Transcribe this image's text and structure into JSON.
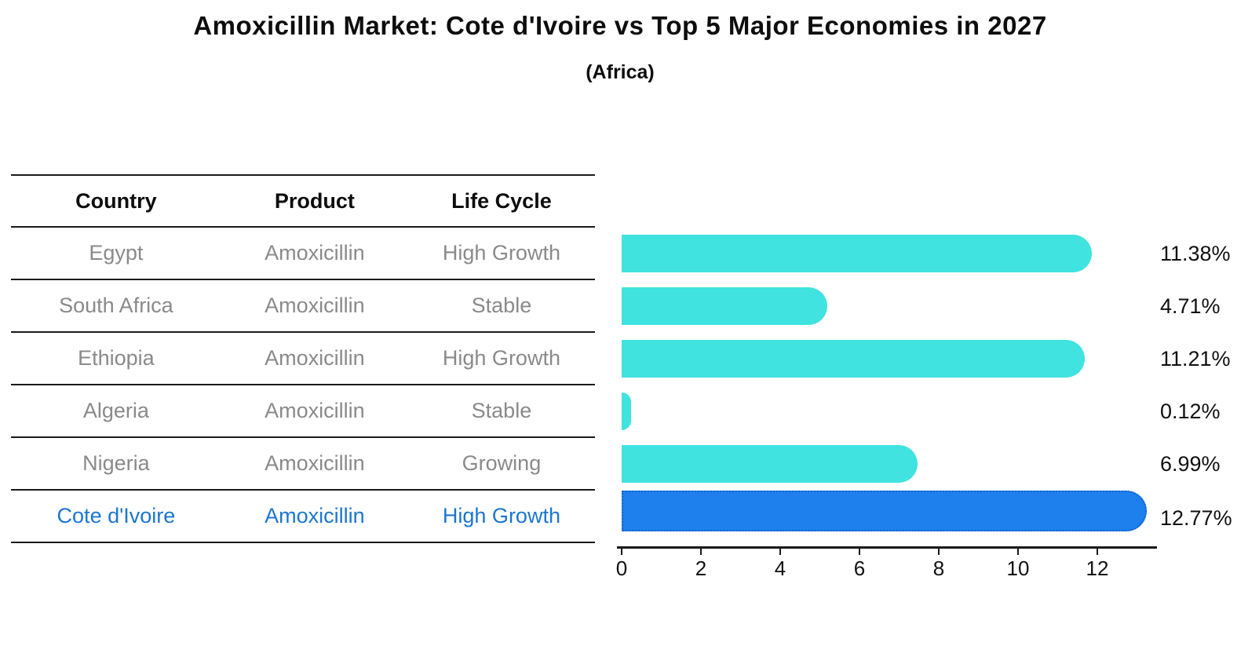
{
  "title": "Amoxicillin Market: Cote d'Ivoire vs Top 5 Major Economies in 2027",
  "subtitle": "(Africa)",
  "table": {
    "headers": [
      "Country",
      "Product",
      "Life Cycle"
    ],
    "rows": [
      {
        "country": "Egypt",
        "product": "Amoxicillin",
        "life_cycle": "High Growth",
        "highlight": false
      },
      {
        "country": "South Africa",
        "product": "Amoxicillin",
        "life_cycle": "Stable",
        "highlight": false
      },
      {
        "country": "Ethiopia",
        "product": "Amoxicillin",
        "life_cycle": "High Growth",
        "highlight": false
      },
      {
        "country": "Algeria",
        "product": "Amoxicillin",
        "life_cycle": "Stable",
        "highlight": false
      },
      {
        "country": "Nigeria",
        "product": "Amoxicillin",
        "life_cycle": "Growing",
        "highlight": false
      },
      {
        "country": "Cote d'Ivoire",
        "product": "Amoxicillin",
        "life_cycle": "High Growth",
        "highlight": true
      }
    ]
  },
  "chart_data": {
    "type": "bar",
    "orientation": "horizontal",
    "title": "Amoxicillin Market: Cote d'Ivoire vs Top 5 Major Economies in 2027 (Africa)",
    "categories": [
      "Egypt",
      "South Africa",
      "Ethiopia",
      "Algeria",
      "Nigeria",
      "Cote d'Ivoire"
    ],
    "values": [
      11.38,
      4.71,
      11.21,
      0.12,
      6.99,
      12.77
    ],
    "value_labels": [
      "11.38%",
      "4.71%",
      "11.21%",
      "0.12%",
      "6.99%",
      "12.77%"
    ],
    "x_ticks": [
      "0",
      "2",
      "4",
      "6",
      "8",
      "10",
      "12"
    ],
    "xlim": [
      0,
      13.4
    ],
    "grid": false,
    "legend": "none",
    "bar_color": "#40E3E0",
    "highlight_bar_color": "#1E80EC",
    "highlight_border_color": "#1463CC",
    "highlight_index": 5
  },
  "colors": {
    "background": "#FFFFFF",
    "text_primary": "#0D0D0D",
    "text_muted": "#8A8A8A",
    "highlight_text": "#1B76CF",
    "line": "#1A1A1A"
  }
}
